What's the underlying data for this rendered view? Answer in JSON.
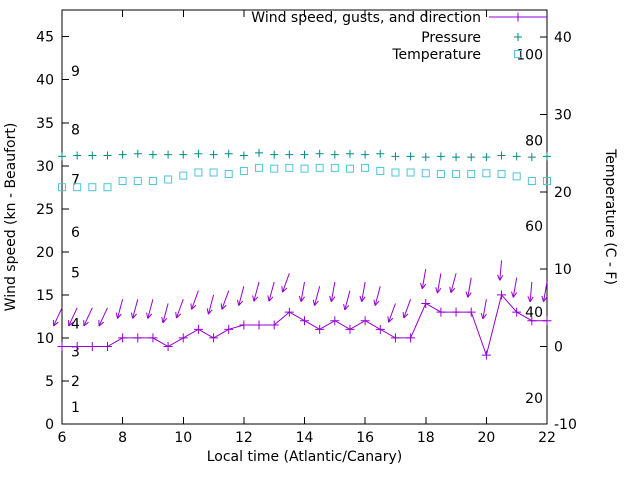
{
  "chart_data": {
    "type": "line",
    "title": "",
    "xlabel": "Local time (Atlantic/Canary)",
    "ylabel_left": "Wind speed (kn - Beaufort)",
    "ylabel_right": "Temperature (C - F)",
    "grid": false,
    "legend_position": "top-right",
    "x_range": [
      6,
      22
    ],
    "x_ticks": [
      6,
      8,
      10,
      12,
      14,
      16,
      18,
      20,
      22
    ],
    "left_axis": {
      "range": [
        0,
        48.1
      ],
      "ticks": [
        0,
        5,
        10,
        15,
        20,
        25,
        30,
        35,
        40,
        45
      ]
    },
    "right_axis": {
      "range": [
        -10,
        43.5
      ],
      "ticks": [
        -10,
        0,
        10,
        20,
        30,
        40
      ]
    },
    "beaufort_scale_labels": [
      {
        "label": "1",
        "kn": 2.0
      },
      {
        "label": "2",
        "kn": 5.0
      },
      {
        "label": "3",
        "kn": 8.4
      },
      {
        "label": "4",
        "kn": 11.7
      },
      {
        "label": "5",
        "kn": 17.6
      },
      {
        "label": "6",
        "kn": 22.3
      },
      {
        "label": "7",
        "kn": 28.4
      },
      {
        "label": "8",
        "kn": 34.2
      },
      {
        "label": "9",
        "kn": 41.0
      }
    ],
    "fahrenheit_scale_labels": [
      {
        "label": "20",
        "f": 20
      },
      {
        "label": "40",
        "f": 40
      },
      {
        "label": "60",
        "f": 60
      },
      {
        "label": "80",
        "f": 80
      },
      {
        "label": "100",
        "f": 100
      }
    ],
    "x": [
      6,
      6.5,
      7,
      7.5,
      8,
      8.5,
      9,
      9.5,
      10,
      10.5,
      11,
      11.5,
      12,
      12.5,
      13,
      13.5,
      14,
      14.5,
      15,
      15.5,
      16,
      16.5,
      17,
      17.5,
      18,
      18.5,
      19,
      19.5,
      20,
      20.5,
      21,
      21.5,
      22
    ],
    "series": [
      {
        "name": "Wind speed, gusts, and direction",
        "axis": "left",
        "color": "#9400d3",
        "marker": "plus",
        "values": [
          9,
          9,
          9,
          9,
          10,
          10,
          10,
          9,
          10,
          11,
          10,
          11,
          11.5,
          11.5,
          11.5,
          13,
          12,
          11,
          12,
          11,
          12,
          11,
          10,
          10,
          14,
          13,
          13,
          13,
          8,
          15,
          13,
          12,
          12
        ],
        "gusts": [
          13.5,
          13.5,
          13.5,
          13.5,
          14.5,
          14.5,
          14.5,
          14,
          14.5,
          15.5,
          15,
          15.5,
          16,
          16.5,
          16.5,
          17.5,
          16.5,
          16,
          16.5,
          15.5,
          16.5,
          16,
          14,
          14.5,
          18,
          17.5,
          17.5,
          17,
          14.5,
          19,
          17,
          16.5,
          16.5
        ],
        "arrow_angles_deg": [
          25,
          25,
          25,
          25,
          15,
          15,
          15,
          15,
          20,
          20,
          15,
          20,
          15,
          15,
          15,
          20,
          10,
          15,
          10,
          15,
          10,
          15,
          20,
          20,
          10,
          10,
          15,
          10,
          10,
          5,
          10,
          5,
          10
        ]
      },
      {
        "name": "Pressure",
        "axis": "left",
        "color": "#008b8b",
        "marker": "plus",
        "values": [
          31.1,
          31.2,
          31.2,
          31.2,
          31.3,
          31.4,
          31.3,
          31.3,
          31.3,
          31.4,
          31.3,
          31.4,
          31.2,
          31.5,
          31.3,
          31.3,
          31.3,
          31.4,
          31.3,
          31.4,
          31.3,
          31.4,
          31.1,
          31.1,
          31.0,
          31.1,
          31.0,
          31.0,
          31.0,
          31.2,
          31.1,
          31.0,
          31.1
        ]
      },
      {
        "name": "Temperature",
        "axis": "right",
        "color": "#4ec5d8",
        "marker": "open-square",
        "values": [
          20.6,
          20.6,
          20.6,
          20.6,
          21.4,
          21.4,
          21.4,
          21.6,
          22.1,
          22.5,
          22.5,
          22.3,
          22.7,
          23.1,
          23.0,
          23.1,
          23.0,
          23.1,
          23.1,
          23.0,
          23.1,
          22.7,
          22.5,
          22.5,
          22.4,
          22.3,
          22.3,
          22.3,
          22.4,
          22.3,
          22.0,
          21.4,
          21.4
        ]
      }
    ],
    "legend": {
      "entries": [
        "Wind speed, gusts, and direction",
        "Pressure",
        "Temperature"
      ]
    }
  }
}
